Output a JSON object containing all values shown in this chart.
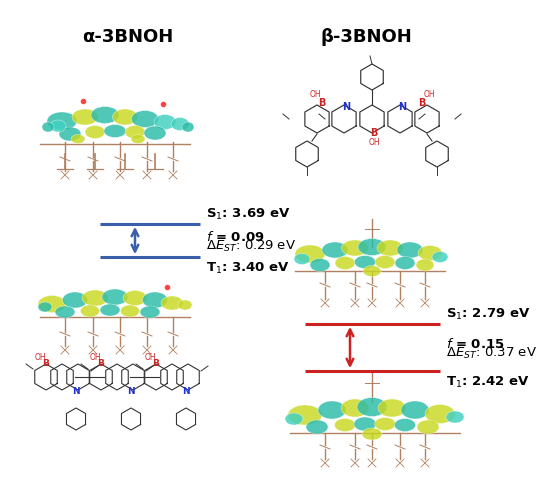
{
  "title_left": "α-3BNOH",
  "title_right": "β-3BNOH",
  "left": {
    "S1_label": "S$_1$: 3.69 eV",
    "f_label": "$f$ = 0.09",
    "delta_label": "Δ$E$$_{ST}$: 0.29 eV",
    "T1_label": "T$_1$: 3.40 eV",
    "color": "#3a5faa"
  },
  "right": {
    "S1_label": "S$_1$: 2.79 eV",
    "f_label": "$f$ = 0.15",
    "delta_label": "Δ$E$$_{ST}$: 0.37 eV",
    "T1_label": "T$_1$: 2.42 eV",
    "color": "#cc2222"
  },
  "background_color": "#ffffff",
  "title_fontsize": 13,
  "label_fontsize": 9.5
}
